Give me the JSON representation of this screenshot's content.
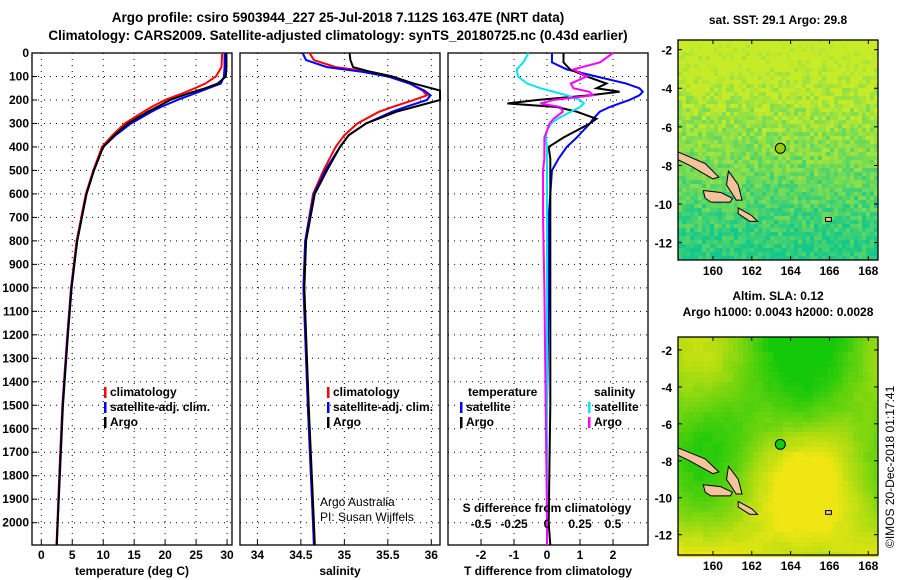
{
  "title_line1": "Argo profile: csiro 5903944_227 25-Jul-2018 7.112S 163.47E (NRT data)",
  "title_line2": "Climatology: CARS2009. Satellite-adjusted climatology: synTS_20180725.nc (0.43d earlier)",
  "credit_line1": "Argo Australia",
  "credit_line2": "PI: Susan Wijffels",
  "copyright": "©IMOS 20-Dec-2018 01:17:41",
  "colors": {
    "climatology": "#ff0000",
    "satellite": "#0000ff",
    "argo": "#000000",
    "sal_satellite": "#00e5ee",
    "sal_argo": "#ff00ff"
  },
  "chart_data": [
    {
      "type": "line",
      "id": "temperature",
      "xlabel": "temperature (deg C)",
      "ylabel": "",
      "xlim": [
        -1.5,
        30.8
      ],
      "ylim": [
        2095,
        0
      ],
      "xticks": [
        "0",
        "5",
        "10",
        "15",
        "20",
        "25",
        "30"
      ],
      "yticks": [
        "0",
        "100",
        "200",
        "300",
        "400",
        "500",
        "600",
        "700",
        "800",
        "900",
        "1000",
        "1100",
        "1200",
        "1300",
        "1400",
        "1500",
        "1600",
        "1700",
        "1800",
        "1900",
        "2000"
      ],
      "legend": [
        "climatology",
        "satellite-adj. clim.",
        "Argo"
      ],
      "depth": [
        0,
        60,
        100,
        130,
        150,
        170,
        200,
        230,
        250,
        300,
        350,
        400,
        500,
        600,
        800,
        1000,
        1200,
        1500,
        1800,
        2000,
        2095
      ],
      "series": [
        {
          "name": "climatology",
          "values": [
            29.2,
            29.1,
            28.2,
            26.5,
            24.8,
            23.0,
            20.0,
            17.8,
            16.5,
            13.5,
            11.5,
            9.8,
            8.4,
            7.2,
            5.7,
            4.8,
            4.2,
            3.4,
            2.9,
            2.6,
            2.45
          ]
        },
        {
          "name": "satellite-adj. clim.",
          "values": [
            29.6,
            29.6,
            29.5,
            29.0,
            27.0,
            25.0,
            22.0,
            19.3,
            17.8,
            14.5,
            12.0,
            10.0,
            8.5,
            7.3,
            5.8,
            4.85,
            4.25,
            3.45,
            2.95,
            2.65,
            2.5
          ]
        },
        {
          "name": "Argo",
          "values": [
            29.9,
            29.9,
            29.8,
            28.5,
            26.5,
            24.0,
            20.8,
            18.7,
            17.2,
            14.0,
            11.8,
            10.0,
            8.5,
            7.3,
            5.8,
            4.9,
            4.3,
            3.5,
            3.0,
            2.65,
            2.5
          ]
        }
      ]
    },
    {
      "type": "line",
      "id": "salinity",
      "xlabel": "salinity",
      "xlim": [
        33.8,
        36.1
      ],
      "ylim": [
        2095,
        0
      ],
      "xticks": [
        "34",
        "34.5",
        "35",
        "35.5",
        "36"
      ],
      "legend": [
        "climatology",
        "satellite-adj. clim.",
        "Argo"
      ],
      "depth": [
        0,
        30,
        60,
        80,
        100,
        130,
        160,
        180,
        200,
        230,
        250,
        300,
        350,
        400,
        500,
        600,
        800,
        1000,
        1500,
        2000,
        2095
      ],
      "series": [
        {
          "name": "climatology",
          "values": [
            34.6,
            34.65,
            34.9,
            35.3,
            35.55,
            35.75,
            35.9,
            35.95,
            35.8,
            35.55,
            35.4,
            35.15,
            35.0,
            34.9,
            34.76,
            34.64,
            34.55,
            34.53,
            34.58,
            34.64,
            34.65
          ]
        },
        {
          "name": "satellite-adj. clim.",
          "values": [
            34.52,
            34.56,
            34.8,
            35.2,
            35.5,
            35.75,
            35.92,
            35.99,
            35.95,
            35.7,
            35.55,
            35.25,
            35.05,
            34.95,
            34.78,
            34.65,
            34.55,
            34.53,
            34.58,
            34.64,
            34.65
          ]
        },
        {
          "name": "Argo",
          "values": [
            35.06,
            35.07,
            35.1,
            35.3,
            35.55,
            35.8,
            36.1,
            36.1,
            36.1,
            35.8,
            35.6,
            35.25,
            35.05,
            34.95,
            34.8,
            34.66,
            34.56,
            34.54,
            34.59,
            34.65,
            34.66
          ]
        }
      ]
    },
    {
      "type": "line",
      "id": "difference",
      "xlabel": "T difference from climatology",
      "xlabel2": "S difference from climatology",
      "xlim": [
        -3,
        3.06
      ],
      "ylim": [
        2095,
        0
      ],
      "xticks": [
        "-2",
        "-1",
        "0",
        "1",
        "2"
      ],
      "xticks2": [
        "-0.5",
        "-0.25",
        "0",
        "0.25",
        "0.5"
      ],
      "legend_t": {
        "title": "temperature",
        "items": [
          "satellite",
          "Argo"
        ]
      },
      "legend_s": {
        "title": "salinity",
        "items": [
          "satellite",
          "Argo"
        ]
      },
      "depth": [
        0,
        40,
        70,
        100,
        130,
        150,
        165,
        180,
        200,
        215,
        230,
        250,
        280,
        300,
        330,
        360,
        400,
        450,
        500,
        700,
        1000,
        1500,
        2000,
        2095
      ],
      "series": [
        {
          "name": "temperature satellite",
          "unit": "degC",
          "values": [
            0.15,
            0.15,
            0.6,
            1.5,
            2.4,
            2.8,
            2.9,
            2.8,
            2.5,
            2.2,
            1.9,
            1.6,
            1.4,
            1.3,
            1.1,
            0.9,
            0.6,
            0.35,
            0.15,
            0.05,
            0.05,
            0.0,
            0.0,
            0.0
          ]
        },
        {
          "name": "temperature Argo",
          "unit": "degC",
          "values": [
            0.5,
            0.5,
            0.7,
            1.2,
            1.8,
            1.5,
            2.2,
            1.3,
            -0.3,
            -1.2,
            0.3,
            0.9,
            1.5,
            1.3,
            0.9,
            0.5,
            0.05,
            0.1,
            0.1,
            0.1,
            0.1,
            0.1,
            0.05,
            0.1
          ]
        },
        {
          "name": "salinity satellite",
          "unit": "psu",
          "values": [
            -0.14,
            -0.18,
            -0.23,
            -0.22,
            -0.15,
            -0.05,
            0.05,
            0.15,
            0.25,
            0.28,
            0.25,
            0.18,
            0.08,
            0.03,
            0.0,
            -0.01,
            0.0,
            0.0,
            0.0,
            0.0,
            0.0,
            0.0,
            0.0,
            0.0
          ]
        },
        {
          "name": "salinity Argo",
          "unit": "psu",
          "values": [
            0.5,
            0.4,
            0.2,
            0.3,
            0.18,
            0.2,
            0.32,
            0.35,
            0.05,
            -0.05,
            0.1,
            0.12,
            0.05,
            0.02,
            0.0,
            -0.02,
            -0.02,
            -0.02,
            -0.03,
            -0.03,
            -0.02,
            -0.01,
            0.0,
            0.0
          ]
        }
      ]
    },
    {
      "type": "heatmap",
      "id": "sst-map",
      "title": "sat. SST: 29.1 Argo: 29.8",
      "xlim": [
        158.2,
        168.5
      ],
      "ylim": [
        -12.9,
        -1.5
      ],
      "xticks": [
        "160",
        "162",
        "164",
        "166",
        "168"
      ],
      "yticks": [
        "-2",
        "-4",
        "-6",
        "-8",
        "-10",
        "-12"
      ],
      "argo_position": [
        163.47,
        -7.112
      ]
    },
    {
      "type": "heatmap",
      "id": "sla-map",
      "title": "Altim. SLA: 0.12",
      "subtitle": "Argo h1000: 0.0043 h2000: 0.0028",
      "xlim": [
        158.2,
        168.5
      ],
      "ylim": [
        -13.1,
        -1.3
      ],
      "xticks": [
        "160",
        "162",
        "164",
        "166",
        "168"
      ],
      "yticks": [
        "-2",
        "-4",
        "-6",
        "-8",
        "-10",
        "-12"
      ],
      "argo_position": [
        163.47,
        -7.112
      ]
    }
  ]
}
